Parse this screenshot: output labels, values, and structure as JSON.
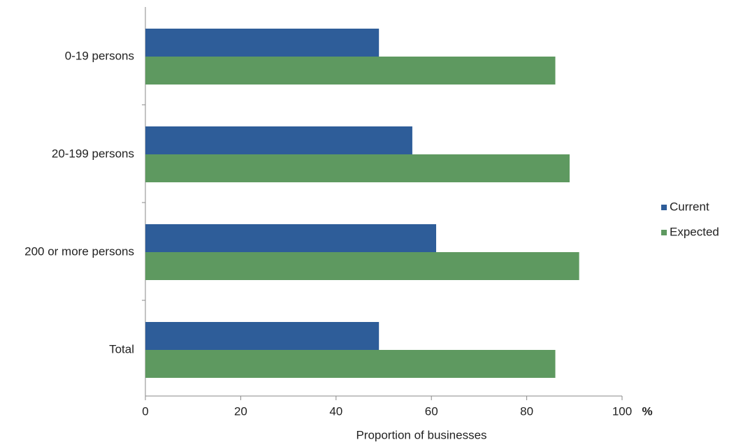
{
  "chart_data": {
    "type": "hbar",
    "categories": [
      "0-19 persons",
      "20-199 persons",
      "200 or more persons",
      "Total"
    ],
    "series": [
      {
        "name": "Current",
        "color": "#2e5d99",
        "values": [
          49,
          56,
          61,
          49
        ]
      },
      {
        "name": "Expected",
        "color": "#5e9960",
        "values": [
          86,
          89,
          91,
          86
        ]
      }
    ],
    "xlabel": "Proportion of businesses",
    "x_unit": "%",
    "xlim": [
      0,
      100
    ],
    "xticks": [
      0,
      20,
      40,
      60,
      80,
      100
    ],
    "grid": false,
    "legend": "right"
  }
}
